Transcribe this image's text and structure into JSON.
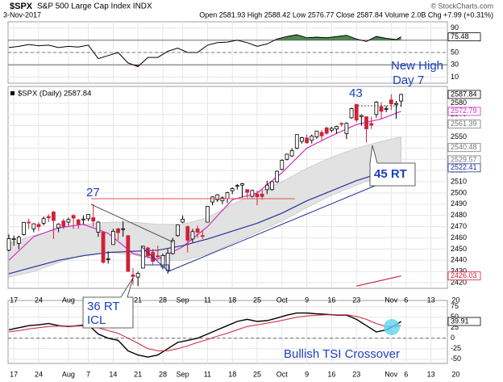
{
  "header": {
    "title": "$SPX",
    "subtitle": "S&P 500 Large Cap Index INDX",
    "credit": "© StockCharts.com",
    "date": "3-Nov-2017",
    "quote": "Open 2581.93 High 2588.42 Low 2576.77 Close 2587.84 Volume 2.0B Chg +7.99 (+0.31%)"
  },
  "annotations": {
    "new_high": [
      "New High",
      "Day 7"
    ],
    "count_43": "43",
    "count_27": "27",
    "icl": [
      "36 RT",
      "ICL"
    ],
    "rt45": "45 RT",
    "tsi_note": "Bullish TSI Crossover"
  },
  "chart_data": [
    {
      "type": "rsi",
      "ylim": [
        0,
        100
      ],
      "yticks": [
        90,
        50,
        30,
        10
      ],
      "levels": [
        70,
        50,
        30
      ],
      "color": "#000000",
      "over_color": "#4e8a4e",
      "under_color": "#a0305a",
      "x": [
        0,
        2,
        4,
        6,
        8,
        10,
        12,
        14,
        16,
        18,
        20,
        22,
        24,
        26,
        28,
        30,
        32,
        34,
        36,
        38,
        40,
        42,
        44,
        46,
        48,
        50,
        52,
        54,
        56,
        58,
        60,
        62,
        64,
        66,
        68,
        70,
        72,
        74,
        76,
        78,
        79
      ],
      "values": [
        58,
        60,
        63,
        61,
        62,
        58,
        60,
        59,
        62,
        40,
        45,
        50,
        33,
        27,
        42,
        42,
        52,
        57,
        50,
        50,
        62,
        66,
        67,
        70,
        66,
        60,
        64,
        72,
        76,
        79,
        74,
        75,
        74,
        76,
        78,
        72,
        68,
        76,
        73,
        71,
        75.48
      ],
      "last_tag": 75.48
    },
    {
      "type": "candlestick",
      "legend_label": "$SPX (Daily) 2587.84",
      "ylim": [
        2415,
        2595
      ],
      "yticks": [
        2420,
        2430,
        2440,
        2450,
        2460,
        2470,
        2480,
        2490,
        2500,
        2510,
        2520,
        2530,
        2540,
        2550,
        2560,
        2570,
        2580
      ],
      "xticks": [
        {
          "value": 1,
          "label": "17"
        },
        {
          "value": 6,
          "label": "24"
        },
        {
          "value": 12,
          "label": "Aug"
        },
        {
          "value": 16,
          "label": "7"
        },
        {
          "value": 21,
          "label": "14"
        },
        {
          "value": 26,
          "label": "21"
        },
        {
          "value": 31,
          "label": "28"
        },
        {
          "value": 35,
          "label": "Sep"
        },
        {
          "value": 40,
          "label": "11"
        },
        {
          "value": 45,
          "label": "18"
        },
        {
          "value": 50,
          "label": "25"
        },
        {
          "value": 55,
          "label": "Oct"
        },
        {
          "value": 60,
          "label": "9"
        },
        {
          "value": 65,
          "label": "16"
        },
        {
          "value": 70,
          "label": "23"
        },
        {
          "value": 77,
          "label": "Nov"
        },
        {
          "value": 80,
          "label": "6"
        },
        {
          "value": 85,
          "label": "13"
        },
        {
          "value": 90,
          "label": "20"
        }
      ],
      "up_color": "#000000",
      "down_color": "#d0213a",
      "ohlc": [
        [
          2449,
          2463,
          2448,
          2459.27
        ],
        [
          2459,
          2462,
          2453,
          2459.14
        ],
        [
          2455,
          2462,
          2450,
          2460.61
        ],
        [
          2463,
          2474,
          2462,
          2473.83
        ],
        [
          2474,
          2477,
          2468,
          2473.45
        ],
        [
          2468,
          2473,
          2465,
          2472.54
        ],
        [
          2472,
          2474,
          2466,
          2469.91
        ],
        [
          2473,
          2479,
          2471,
          2477.13
        ],
        [
          2479,
          2481,
          2474,
          2477.83
        ],
        [
          2483,
          2484,
          2459,
          2475.42
        ],
        [
          2469,
          2473,
          2465,
          2472.1
        ],
        [
          2475,
          2477,
          2468,
          2470.3
        ],
        [
          2474,
          2478,
          2471,
          2476.35
        ],
        [
          2480,
          2481,
          2468,
          2477.57
        ],
        [
          2476,
          2477,
          2468,
          2472.16
        ],
        [
          2476,
          2480,
          2472,
          2476.83
        ],
        [
          2477,
          2481,
          2475,
          2480.91
        ],
        [
          2478,
          2490,
          2470,
          2474.92
        ],
        [
          2465,
          2475,
          2461,
          2474.02
        ],
        [
          2465,
          2465,
          2437,
          2438.21
        ],
        [
          2441,
          2448,
          2437,
          2441.32
        ],
        [
          2454,
          2468,
          2454,
          2465.84
        ],
        [
          2468,
          2469,
          2458,
          2464.61
        ],
        [
          2468,
          2475,
          2461,
          2468.11
        ],
        [
          2462,
          2462,
          2430,
          2430.01
        ],
        [
          2427,
          2433,
          2418,
          2425.55
        ],
        [
          2425,
          2430,
          2417,
          2428.37
        ],
        [
          2433,
          2453,
          2433,
          2452.51
        ],
        [
          2451,
          2452,
          2442,
          2444.04
        ],
        [
          2447,
          2450,
          2436,
          2438.97
        ],
        [
          2444,
          2453,
          2442,
          2443.05
        ],
        [
          2434,
          2446,
          2432,
          2444.24
        ],
        [
          2431,
          2450,
          2428,
          2446.3
        ],
        [
          2446,
          2460,
          2445,
          2457.59
        ],
        [
          2462,
          2472,
          2461,
          2471.65
        ],
        [
          2474,
          2480,
          2473,
          2476.55
        ],
        [
          2470,
          2471,
          2447,
          2457.85
        ],
        [
          2459,
          2468,
          2456,
          2465.54
        ],
        [
          2468,
          2471,
          2460,
          2465.1
        ],
        [
          2462,
          2467,
          2459,
          2461.43
        ],
        [
          2474,
          2488,
          2474,
          2488.11
        ],
        [
          2492,
          2497,
          2489,
          2496.48
        ],
        [
          2494,
          2499,
          2492,
          2498.37
        ],
        [
          2493,
          2497,
          2490,
          2495.62
        ],
        [
          2495,
          2501,
          2491,
          2500.23
        ],
        [
          2502,
          2505,
          2499,
          2503.87
        ],
        [
          2506,
          2508,
          2503,
          2506.65
        ],
        [
          2507,
          2509,
          2496,
          2508.24
        ],
        [
          2503,
          2503,
          2496,
          2500.6
        ],
        [
          2497,
          2503,
          2496,
          2502.22
        ],
        [
          2499,
          2502,
          2489,
          2496.66
        ],
        [
          2499,
          2503,
          2494,
          2496.84
        ],
        [
          2503,
          2511,
          2499,
          2507.04
        ],
        [
          2503,
          2510,
          2502,
          2510.06
        ],
        [
          2510,
          2520,
          2509,
          2519.36
        ],
        [
          2521,
          2530,
          2520,
          2529.12
        ],
        [
          2530,
          2535,
          2529,
          2534.58
        ],
        [
          2533,
          2540,
          2532,
          2537.74
        ],
        [
          2540,
          2552,
          2539,
          2552.07
        ],
        [
          2546,
          2550,
          2544,
          2549.33
        ],
        [
          2549,
          2552,
          2544,
          2544.73
        ],
        [
          2547,
          2552,
          2544,
          2550.64
        ],
        [
          2550,
          2555,
          2548,
          2555.24
        ],
        [
          2554,
          2556,
          2547,
          2550.93
        ],
        [
          2558,
          2559,
          2552,
          2553.17
        ],
        [
          2556,
          2559,
          2554,
          2557.64
        ],
        [
          2557,
          2560,
          2553,
          2559.36
        ],
        [
          2562,
          2563,
          2559,
          2561.26
        ],
        [
          2553,
          2563,
          2548,
          2562.1
        ],
        [
          2567,
          2576,
          2566,
          2575.21
        ],
        [
          2579,
          2579,
          2563,
          2564.98
        ],
        [
          2568,
          2570,
          2560,
          2569.13
        ],
        [
          2568,
          2568,
          2545,
          2557.15
        ],
        [
          2562,
          2568,
          2557,
          2560.4
        ],
        [
          2570,
          2582,
          2567,
          2581.07
        ],
        [
          2577,
          2581,
          2566,
          2572.83
        ],
        [
          2575,
          2578,
          2572,
          2575.26
        ],
        [
          2583,
          2588,
          2574,
          2579.36
        ],
        [
          2579,
          2582,
          2566,
          2579.85
        ],
        [
          2581.93,
          2588.42,
          2576.77,
          2587.84
        ]
      ],
      "band": {
        "x": [
          0,
          5,
          10,
          15,
          20,
          25,
          30,
          35,
          40,
          45,
          50,
          55,
          60,
          65,
          70,
          75,
          79
        ],
        "upper": [
          2455,
          2462,
          2468,
          2472,
          2474,
          2474,
          2472,
          2472,
          2478,
          2490,
          2500,
          2510,
          2522,
          2532,
          2540,
          2546,
          2550
        ],
        "lower": [
          2425,
          2430,
          2438,
          2445,
          2447,
          2445,
          2440,
          2440,
          2445,
          2455,
          2465,
          2475,
          2487,
          2498,
          2507,
          2515,
          2520
        ],
        "color": "#e2e2e2"
      },
      "overlays": [
        {
          "color": "#d12fc4",
          "x": [
            0,
            5,
            10,
            15,
            20,
            25,
            30,
            35,
            40,
            45,
            50,
            55,
            60,
            65,
            70,
            75,
            79
          ],
          "values": [
            2440,
            2461,
            2469,
            2472,
            2464,
            2446,
            2441,
            2452,
            2470,
            2494,
            2500,
            2518,
            2540,
            2551,
            2561,
            2566,
            2572.79
          ]
        },
        {
          "color": "#24319a",
          "x": [
            0,
            5,
            10,
            15,
            20,
            25,
            30,
            35,
            40,
            45,
            50,
            55,
            60,
            65,
            70,
            75,
            79
          ],
          "values": [
            2428,
            2434,
            2440,
            2444,
            2447,
            2448,
            2449,
            2453,
            2459,
            2466,
            2473,
            2482,
            2493,
            2502,
            2511,
            2518,
            2522.41
          ]
        },
        {
          "color": "#d0213a",
          "x": [
            70,
            79
          ],
          "values": [
            2417,
            2426.03
          ]
        }
      ],
      "price_tags": [
        2587.84,
        2572.79,
        2561.39,
        2540.48,
        2529.57,
        2522.41,
        2426.03
      ],
      "price_tag_colors": [
        "#000000",
        "#d12fc4",
        "#777777",
        "#777777",
        "#777777",
        "#24319a",
        "#d0213a"
      ]
    },
    {
      "type": "tsi",
      "ylim": [
        -60,
        90
      ],
      "yticks": [
        75,
        50,
        25,
        0,
        -25,
        -50
      ],
      "levels": [
        0
      ],
      "x": [
        0,
        2,
        4,
        6,
        8,
        10,
        12,
        14,
        16,
        18,
        20,
        22,
        24,
        26,
        28,
        30,
        32,
        34,
        36,
        38,
        40,
        42,
        44,
        46,
        48,
        50,
        52,
        54,
        56,
        58,
        60,
        62,
        64,
        66,
        68,
        70,
        72,
        74,
        76,
        78,
        79
      ],
      "series": [
        {
          "color": "#000000",
          "values": [
            20,
            25,
            30,
            32,
            35,
            30,
            28,
            30,
            32,
            10,
            0,
            -5,
            -30,
            -40,
            -45,
            -40,
            -25,
            -10,
            -5,
            0,
            10,
            20,
            30,
            40,
            45,
            40,
            42,
            48,
            55,
            60,
            60,
            58,
            57,
            55,
            55,
            45,
            30,
            15,
            20,
            32,
            39.91
          ]
        },
        {
          "color": "#d0213a",
          "values": [
            15,
            18,
            22,
            25,
            28,
            29,
            29,
            29,
            30,
            25,
            18,
            12,
            0,
            -12,
            -25,
            -30,
            -30,
            -25,
            -18,
            -10,
            -3,
            5,
            12,
            20,
            28,
            32,
            36,
            40,
            45,
            50,
            53,
            55,
            56,
            56,
            56,
            52,
            45,
            35,
            28,
            28,
            30
          ]
        }
      ],
      "last_tag": 39.91
    }
  ]
}
